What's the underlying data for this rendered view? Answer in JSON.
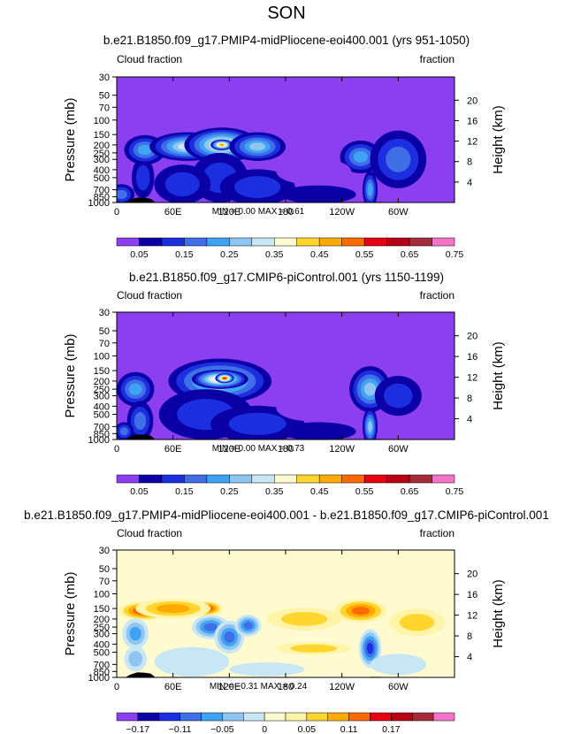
{
  "figure": {
    "season_title": "SON"
  },
  "colors": {
    "seq": [
      "#8c3ff0",
      "#0b00a6",
      "#1b2ee0",
      "#3f6ee6",
      "#3fa3f5",
      "#8fc5f0",
      "#c9e6f5",
      "#fffbd0",
      "#ffd52e",
      "#ffaa00",
      "#ff6a00",
      "#e60012",
      "#b80014",
      "#a52a3a",
      "#f472c8"
    ],
    "div": [
      "#8c3ff0",
      "#0b00a6",
      "#1b2ee0",
      "#3f6ee6",
      "#3fa3f5",
      "#8fc5f0",
      "#c9e6f5",
      "#fffbd0",
      "#fff4a8",
      "#ffd52e",
      "#ffaa00",
      "#ff6a00",
      "#e60012",
      "#b80014",
      "#a52a3a",
      "#f472c8"
    ],
    "land": "#000000"
  },
  "chart_data": [
    {
      "type": "heatmap",
      "title": "b.e21.B1850.f09_g17.PMIP4-midPliocene-eoi400.001 (yrs 951-1050)",
      "left_label": "Cloud fraction",
      "right_label": "fraction",
      "ylabel": "Pressure (mb)",
      "y2label": "Height (km)",
      "x_ticks": [
        "0",
        "60E",
        "120E",
        "180",
        "120W",
        "60W"
      ],
      "x_tick_values": [
        0,
        60,
        120,
        180,
        240,
        300
      ],
      "xlim": [
        0,
        360
      ],
      "y_ticks": [
        "1000",
        "850",
        "700",
        "500",
        "400",
        "300",
        "250",
        "200",
        "150",
        "100",
        "70",
        "50",
        "30"
      ],
      "y_tick_values": [
        1000,
        850,
        700,
        500,
        400,
        300,
        250,
        200,
        150,
        100,
        70,
        50,
        30
      ],
      "ylim": [
        1000,
        30
      ],
      "height_ticks": [
        "4",
        "8",
        "12",
        "16",
        "20"
      ],
      "height_values": [
        4,
        8,
        12,
        16,
        20
      ],
      "stats": {
        "min_label": "MIN =",
        "min": "0.00",
        "max_label": "MAX =",
        "max": "0.61"
      },
      "colorbar": {
        "scale": "seq",
        "labels": [
          "0.05",
          "0.15",
          "0.25",
          "0.35",
          "0.45",
          "0.55",
          "0.65",
          "0.75"
        ]
      },
      "background_level": 0,
      "features": [
        {
          "lon": 5,
          "p": 800,
          "dlon": 14,
          "dp": 240,
          "level": 3
        },
        {
          "lon": 28,
          "p": 500,
          "dlon": 12,
          "dp": 260,
          "level": 2
        },
        {
          "lon": 30,
          "p": 230,
          "dlon": 22,
          "dp": 90,
          "level": 4
        },
        {
          "lon": 75,
          "p": 210,
          "dlon": 40,
          "dp": 80,
          "level": 6
        },
        {
          "lon": 85,
          "p": 205,
          "dlon": 12,
          "dp": 35,
          "level": 8
        },
        {
          "lon": 112,
          "p": 200,
          "dlon": 40,
          "dp": 90,
          "level": 7
        },
        {
          "lon": 112,
          "p": 200,
          "dlon": 12,
          "dp": 30,
          "level": 9
        },
        {
          "lon": 150,
          "p": 210,
          "dlon": 30,
          "dp": 80,
          "level": 5
        },
        {
          "lon": 110,
          "p": 500,
          "dlon": 30,
          "dp": 300,
          "level": 2
        },
        {
          "lon": 150,
          "p": 650,
          "dlon": 40,
          "dp": 300,
          "level": 2
        },
        {
          "lon": 70,
          "p": 600,
          "dlon": 30,
          "dp": 300,
          "level": 2
        },
        {
          "lon": 260,
          "p": 280,
          "dlon": 22,
          "dp": 120,
          "level": 4
        },
        {
          "lon": 270,
          "p": 700,
          "dlon": 8,
          "dp": 350,
          "level": 4
        },
        {
          "lon": 300,
          "p": 300,
          "dlon": 30,
          "dp": 200,
          "level": 3
        },
        {
          "lon": 215,
          "p": 800,
          "dlon": 40,
          "dp": 200,
          "level": 1
        },
        {
          "lon": 210,
          "p": 420,
          "dlon": 40,
          "dp": 150,
          "level": -1
        }
      ],
      "terrain": [
        [
          10,
          990
        ],
        [
          14,
          930
        ],
        [
          18,
          900
        ],
        [
          22,
          870
        ],
        [
          30,
          880
        ],
        [
          36,
          900
        ],
        [
          40,
          970
        ],
        [
          270,
          985
        ],
        [
          282,
          990
        ]
      ]
    },
    {
      "type": "heatmap",
      "title": "b.e21.B1850.f09_g17.CMIP6-piControl.001 (yrs 1150-1199)",
      "left_label": "Cloud fraction",
      "right_label": "fraction",
      "ylabel": "Pressure (mb)",
      "y2label": "Height (km)",
      "x_ticks": [
        "0",
        "60E",
        "120E",
        "180",
        "120W",
        "60W"
      ],
      "x_tick_values": [
        0,
        60,
        120,
        180,
        240,
        300
      ],
      "xlim": [
        0,
        360
      ],
      "y_ticks": [
        "1000",
        "850",
        "700",
        "500",
        "400",
        "300",
        "250",
        "200",
        "150",
        "100",
        "70",
        "50",
        "30"
      ],
      "y_tick_values": [
        1000,
        850,
        700,
        500,
        400,
        300,
        250,
        200,
        150,
        100,
        70,
        50,
        30
      ],
      "ylim": [
        1000,
        30
      ],
      "height_ticks": [
        "4",
        "8",
        "12",
        "16",
        "20"
      ],
      "height_values": [
        4,
        8,
        12,
        16,
        20
      ],
      "stats": {
        "min_label": "MIN =",
        "min": "0.00",
        "max_label": "MAX =",
        "max": "0.73"
      },
      "colorbar": {
        "scale": "seq",
        "labels": [
          "0.05",
          "0.15",
          "0.25",
          "0.35",
          "0.45",
          "0.55",
          "0.65",
          "0.75"
        ]
      },
      "background_level": 0,
      "features": [
        {
          "lon": 20,
          "p": 250,
          "dlon": 20,
          "dp": 110,
          "level": 4
        },
        {
          "lon": 25,
          "p": 600,
          "dlon": 14,
          "dp": 300,
          "level": 3
        },
        {
          "lon": 8,
          "p": 800,
          "dlon": 10,
          "dp": 200,
          "level": 3
        },
        {
          "lon": 110,
          "p": 200,
          "dlon": 55,
          "dp": 110,
          "level": 6
        },
        {
          "lon": 110,
          "p": 190,
          "dlon": 30,
          "dp": 50,
          "level": 8
        },
        {
          "lon": 115,
          "p": 185,
          "dlon": 10,
          "dp": 25,
          "level": 11
        },
        {
          "lon": 95,
          "p": 500,
          "dlon": 50,
          "dp": 300,
          "level": 2
        },
        {
          "lon": 150,
          "p": 650,
          "dlon": 50,
          "dp": 300,
          "level": 2
        },
        {
          "lon": 270,
          "p": 250,
          "dlon": 22,
          "dp": 140,
          "level": 5
        },
        {
          "lon": 270,
          "p": 700,
          "dlon": 8,
          "dp": 350,
          "level": 5
        },
        {
          "lon": 300,
          "p": 300,
          "dlon": 25,
          "dp": 150,
          "level": 2
        },
        {
          "lon": 215,
          "p": 800,
          "dlon": 40,
          "dp": 200,
          "level": 1
        },
        {
          "lon": 210,
          "p": 420,
          "dlon": 40,
          "dp": 150,
          "level": -1
        }
      ],
      "terrain": [
        [
          10,
          990
        ],
        [
          14,
          930
        ],
        [
          18,
          900
        ],
        [
          22,
          870
        ],
        [
          30,
          880
        ],
        [
          36,
          900
        ],
        [
          40,
          970
        ],
        [
          270,
          985
        ],
        [
          282,
          990
        ]
      ]
    },
    {
      "type": "heatmap",
      "title": "b.e21.B1850.f09_g17.PMIP4-midPliocene-eoi400.001 - b.e21.B1850.f09_g17.CMIP6-piControl.001",
      "left_label": "Cloud fraction",
      "right_label": "fraction",
      "ylabel": "Pressure (mb)",
      "y2label": "Height (km)",
      "x_ticks": [
        "0",
        "60E",
        "120E",
        "180",
        "120W",
        "60W"
      ],
      "x_tick_values": [
        0,
        60,
        120,
        180,
        240,
        300
      ],
      "xlim": [
        0,
        360
      ],
      "y_ticks": [
        "1000",
        "850",
        "700",
        "500",
        "400",
        "300",
        "250",
        "200",
        "150",
        "100",
        "70",
        "50",
        "30"
      ],
      "y_tick_values": [
        1000,
        850,
        700,
        500,
        400,
        300,
        250,
        200,
        150,
        100,
        70,
        50,
        30
      ],
      "ylim": [
        1000,
        30
      ],
      "height_ticks": [
        "4",
        "8",
        "12",
        "16",
        "20"
      ],
      "height_values": [
        4,
        8,
        12,
        16,
        20
      ],
      "stats": {
        "min_label": "MIN =",
        "min": "−0.31",
        "max_label": "MAX =",
        "max": "0.24"
      },
      "colorbar": {
        "scale": "div",
        "labels": [
          "−0.17",
          "−0.11",
          "−0.05",
          "0",
          "0.05",
          "0.11",
          "0.17"
        ]
      },
      "background_level": 7,
      "features": [
        {
          "lon": 30,
          "p": 160,
          "dlon": 28,
          "dp": 40,
          "level": 12
        },
        {
          "lon": 95,
          "p": 150,
          "dlon": 18,
          "dp": 30,
          "level": 12
        },
        {
          "lon": 60,
          "p": 150,
          "dlon": 40,
          "dp": 40,
          "level": 10
        },
        {
          "lon": 20,
          "p": 300,
          "dlon": 14,
          "dp": 120,
          "level": 4
        },
        {
          "lon": 100,
          "p": 250,
          "dlon": 20,
          "dp": 80,
          "level": 3
        },
        {
          "lon": 120,
          "p": 330,
          "dlon": 16,
          "dp": 140,
          "level": 3
        },
        {
          "lon": 140,
          "p": 240,
          "dlon": 14,
          "dp": 70,
          "level": 3
        },
        {
          "lon": 20,
          "p": 600,
          "dlon": 12,
          "dp": 200,
          "level": 5
        },
        {
          "lon": 270,
          "p": 450,
          "dlon": 12,
          "dp": 220,
          "level": 2
        },
        {
          "lon": 260,
          "p": 160,
          "dlon": 28,
          "dp": 50,
          "level": 11
        },
        {
          "lon": 320,
          "p": 220,
          "dlon": 30,
          "dp": 80,
          "level": 9
        },
        {
          "lon": 210,
          "p": 450,
          "dlon": 40,
          "dp": 80,
          "level": 9
        },
        {
          "lon": 200,
          "p": 200,
          "dlon": 40,
          "dp": 60,
          "level": 9
        },
        {
          "lon": 80,
          "p": 650,
          "dlon": 40,
          "dp": 250,
          "level": 6
        },
        {
          "lon": 160,
          "p": 800,
          "dlon": 40,
          "dp": 150,
          "level": 6
        },
        {
          "lon": 300,
          "p": 700,
          "dlon": 30,
          "dp": 200,
          "level": 6
        }
      ],
      "terrain": [
        [
          10,
          990
        ],
        [
          14,
          930
        ],
        [
          18,
          900
        ],
        [
          22,
          870
        ],
        [
          30,
          880
        ],
        [
          36,
          900
        ],
        [
          40,
          970
        ],
        [
          270,
          985
        ],
        [
          282,
          990
        ]
      ]
    }
  ]
}
